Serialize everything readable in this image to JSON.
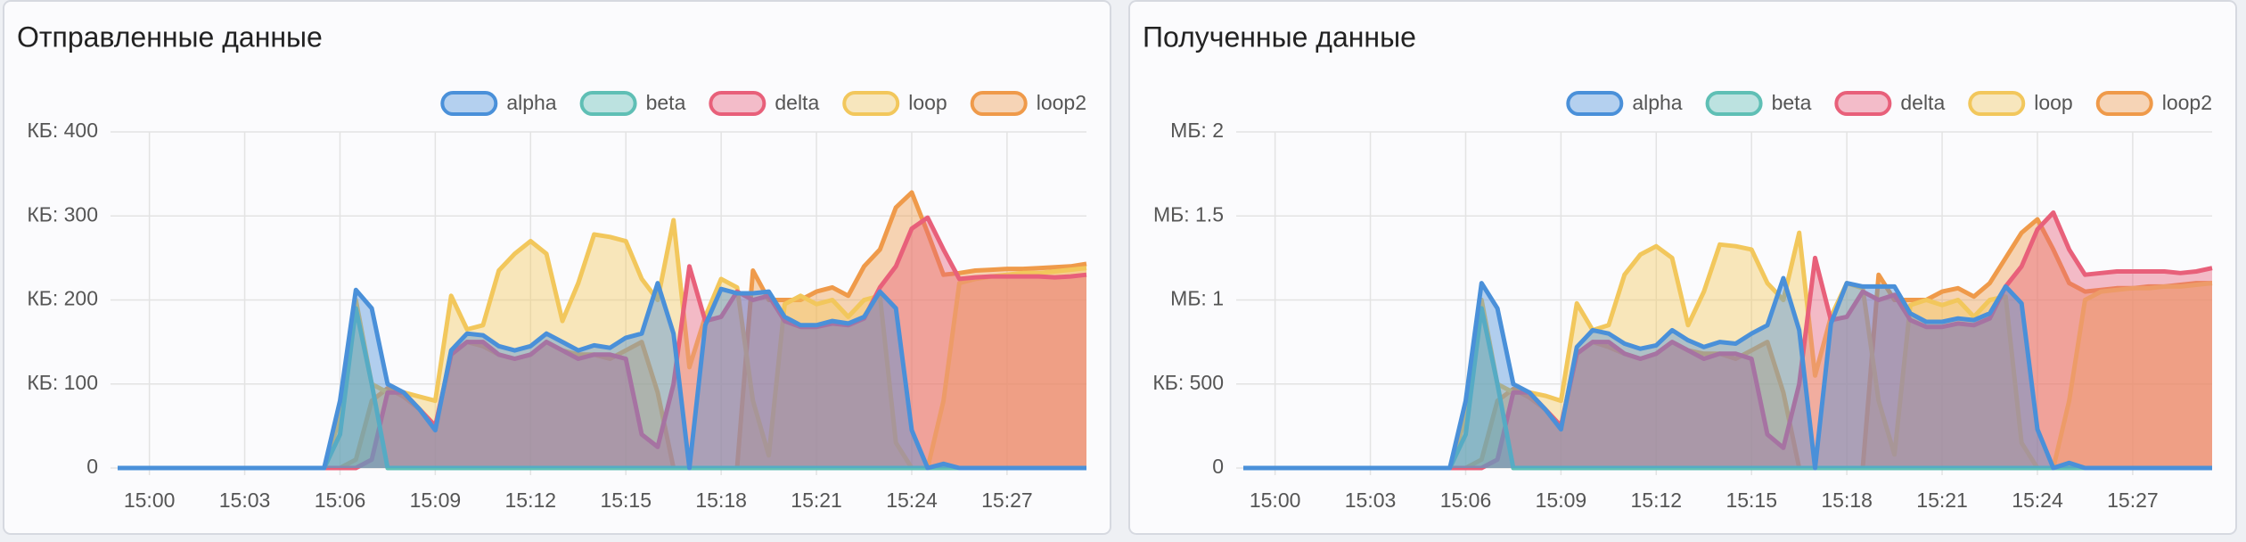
{
  "chart_data": [
    {
      "type": "area",
      "title": "Отправленные данные",
      "x": [
        -1,
        -0.5,
        0,
        0.5,
        1,
        1.5,
        2,
        2.5,
        3,
        3.5,
        4,
        4.5,
        5,
        5.5,
        6,
        6.5,
        7,
        7.5,
        8,
        8.5,
        9,
        9.5,
        10,
        10.5,
        11,
        11.5,
        12,
        12.5,
        13,
        13.5,
        14,
        14.5,
        15,
        15.5,
        16,
        16.5,
        17,
        17.5,
        18,
        18.5,
        19,
        19.5,
        20,
        20.5,
        21,
        21.5,
        22,
        22.5,
        23,
        23.5,
        24,
        24.5,
        25,
        25.5,
        26,
        26.5,
        27,
        27.5,
        28,
        28.5,
        29,
        29.5
      ],
      "series": [
        {
          "name": "alpha",
          "color": "#4a90d9",
          "values": [
            0,
            0,
            0,
            0,
            0,
            0,
            0,
            0,
            0,
            0,
            0,
            0,
            0,
            0,
            80,
            212,
            190,
            100,
            90,
            70,
            45,
            140,
            160,
            158,
            145,
            140,
            145,
            160,
            150,
            140,
            146,
            143,
            155,
            160,
            220,
            160,
            0,
            170,
            213,
            208,
            208,
            210,
            180,
            170,
            170,
            175,
            172,
            180,
            210,
            190,
            45,
            0,
            5,
            0,
            0,
            0,
            0,
            0,
            0,
            0,
            0,
            0
          ]
        },
        {
          "name": "beta",
          "color": "#5fbfb5",
          "values": [
            0,
            0,
            0,
            0,
            0,
            0,
            0,
            0,
            0,
            0,
            0,
            0,
            0,
            0,
            40,
            190,
            100,
            0,
            0,
            0,
            0,
            0,
            0,
            0,
            0,
            0,
            0,
            0,
            0,
            0,
            0,
            0,
            0,
            0,
            0,
            0,
            0,
            0,
            0,
            0,
            0,
            0,
            0,
            0,
            0,
            0,
            0,
            0,
            0,
            0,
            0,
            0,
            0,
            0,
            0,
            0,
            0,
            0,
            0,
            0,
            0,
            0
          ]
        },
        {
          "name": "delta",
          "color": "#e8607a",
          "values": [
            0,
            0,
            0,
            0,
            0,
            0,
            0,
            0,
            0,
            0,
            0,
            0,
            0,
            0,
            0,
            0,
            10,
            90,
            90,
            70,
            50,
            135,
            150,
            150,
            135,
            130,
            135,
            150,
            140,
            130,
            135,
            135,
            130,
            40,
            25,
            100,
            240,
            175,
            180,
            210,
            200,
            205,
            175,
            168,
            168,
            172,
            170,
            178,
            215,
            240,
            285,
            298,
            260,
            225,
            227,
            228,
            228,
            228,
            228,
            227,
            228,
            230
          ]
        },
        {
          "name": "loop",
          "color": "#f2c75c",
          "values": [
            0,
            0,
            0,
            0,
            0,
            0,
            0,
            0,
            0,
            0,
            0,
            0,
            0,
            0,
            60,
            200,
            100,
            90,
            90,
            85,
            80,
            205,
            165,
            170,
            235,
            255,
            270,
            255,
            175,
            220,
            278,
            275,
            270,
            225,
            200,
            295,
            120,
            180,
            225,
            215,
            80,
            15,
            195,
            205,
            195,
            200,
            180,
            200,
            205,
            30,
            0,
            0,
            80,
            220,
            225,
            228,
            230,
            232,
            232,
            234,
            236,
            238
          ]
        },
        {
          "name": "loop2",
          "color": "#ef9a4a",
          "values": [
            0,
            0,
            0,
            0,
            0,
            0,
            0,
            0,
            0,
            0,
            0,
            0,
            0,
            0,
            0,
            10,
            80,
            95,
            85,
            70,
            50,
            135,
            150,
            145,
            135,
            130,
            135,
            150,
            140,
            135,
            135,
            130,
            140,
            150,
            90,
            0,
            0,
            0,
            0,
            0,
            235,
            200,
            200,
            200,
            210,
            215,
            205,
            240,
            260,
            310,
            328,
            280,
            230,
            232,
            235,
            236,
            237,
            237,
            238,
            239,
            240,
            243
          ]
        }
      ],
      "xlim": [
        -1,
        29.5
      ],
      "xticks": [
        {
          "value": 0,
          "label": "15:00"
        },
        {
          "value": 3,
          "label": "15:03"
        },
        {
          "value": 6,
          "label": "15:06"
        },
        {
          "value": 9,
          "label": "15:09"
        },
        {
          "value": 12,
          "label": "15:12"
        },
        {
          "value": 15,
          "label": "15:15"
        },
        {
          "value": 18,
          "label": "15:18"
        },
        {
          "value": 21,
          "label": "15:21"
        },
        {
          "value": 24,
          "label": "15:24"
        },
        {
          "value": 27,
          "label": "15:27"
        }
      ],
      "ylim": [
        0,
        400
      ],
      "yticks": [
        0,
        {
          "value": 100,
          "label": "КБ: 100"
        },
        {
          "value": 200,
          "label": "КБ: 200"
        },
        {
          "value": 300,
          "label": "КБ: 300"
        },
        {
          "value": 400,
          "label": "КБ: 400"
        }
      ],
      "grid": true,
      "legend": "top-right"
    },
    {
      "type": "area",
      "title": "Полученные данные",
      "x": [
        -1,
        -0.5,
        0,
        0.5,
        1,
        1.5,
        2,
        2.5,
        3,
        3.5,
        4,
        4.5,
        5,
        5.5,
        6,
        6.5,
        7,
        7.5,
        8,
        8.5,
        9,
        9.5,
        10,
        10.5,
        11,
        11.5,
        12,
        12.5,
        13,
        13.5,
        14,
        14.5,
        15,
        15.5,
        16,
        16.5,
        17,
        17.5,
        18,
        18.5,
        19,
        19.5,
        20,
        20.5,
        21,
        21.5,
        22,
        22.5,
        23,
        23.5,
        24,
        24.5,
        25,
        25.5,
        26,
        26.5,
        27,
        27.5,
        28,
        28.5,
        29,
        29.5
      ],
      "series": [
        {
          "name": "alpha",
          "color": "#4a90d9",
          "values": [
            0,
            0,
            0,
            0,
            0,
            0,
            0,
            0,
            0,
            0,
            0,
            0,
            0,
            0,
            0.4,
            1.1,
            0.95,
            0.5,
            0.45,
            0.35,
            0.23,
            0.72,
            0.82,
            0.8,
            0.74,
            0.71,
            0.73,
            0.82,
            0.76,
            0.72,
            0.75,
            0.74,
            0.8,
            0.85,
            1.13,
            0.82,
            0,
            0.86,
            1.1,
            1.08,
            1.08,
            1.08,
            0.92,
            0.87,
            0.87,
            0.89,
            0.88,
            0.92,
            1.08,
            0.98,
            0.23,
            0,
            0.03,
            0,
            0,
            0,
            0,
            0,
            0,
            0,
            0,
            0
          ]
        },
        {
          "name": "beta",
          "color": "#5fbfb5",
          "values": [
            0,
            0,
            0,
            0,
            0,
            0,
            0,
            0,
            0,
            0,
            0,
            0,
            0,
            0,
            0.2,
            0.95,
            0.5,
            0,
            0,
            0,
            0,
            0,
            0,
            0,
            0,
            0,
            0,
            0,
            0,
            0,
            0,
            0,
            0,
            0,
            0,
            0,
            0,
            0,
            0,
            0,
            0,
            0,
            0,
            0,
            0,
            0,
            0,
            0,
            0,
            0,
            0,
            0,
            0,
            0,
            0,
            0,
            0,
            0,
            0,
            0,
            0,
            0
          ]
        },
        {
          "name": "delta",
          "color": "#e8607a",
          "values": [
            0,
            0,
            0,
            0,
            0,
            0,
            0,
            0,
            0,
            0,
            0,
            0,
            0,
            0,
            0,
            0,
            0.05,
            0.45,
            0.45,
            0.35,
            0.25,
            0.68,
            0.75,
            0.75,
            0.68,
            0.65,
            0.68,
            0.75,
            0.7,
            0.65,
            0.68,
            0.68,
            0.65,
            0.2,
            0.12,
            0.5,
            1.25,
            0.88,
            0.9,
            1.05,
            1.0,
            1.03,
            0.88,
            0.84,
            0.84,
            0.86,
            0.85,
            0.89,
            1.08,
            1.2,
            1.42,
            1.52,
            1.3,
            1.15,
            1.16,
            1.17,
            1.17,
            1.17,
            1.17,
            1.16,
            1.17,
            1.19
          ]
        },
        {
          "name": "loop",
          "color": "#f2c75c",
          "values": [
            0,
            0,
            0,
            0,
            0,
            0,
            0,
            0,
            0,
            0,
            0,
            0,
            0,
            0,
            0.3,
            1.0,
            0.5,
            0.45,
            0.45,
            0.43,
            0.4,
            0.98,
            0.82,
            0.85,
            1.15,
            1.27,
            1.32,
            1.25,
            0.85,
            1.05,
            1.33,
            1.32,
            1.3,
            1.1,
            1.0,
            1.4,
            0.55,
            0.9,
            1.1,
            1.07,
            0.4,
            0.08,
            0.97,
            1.0,
            0.97,
            1.0,
            0.9,
            1.0,
            1.02,
            0.15,
            0,
            0,
            0.4,
            1.0,
            1.05,
            1.06,
            1.07,
            1.07,
            1.08,
            1.08,
            1.09,
            1.1
          ]
        },
        {
          "name": "loop2",
          "color": "#ef9a4a",
          "values": [
            0,
            0,
            0,
            0,
            0,
            0,
            0,
            0,
            0,
            0,
            0,
            0,
            0,
            0,
            0,
            0.05,
            0.4,
            0.47,
            0.42,
            0.35,
            0.25,
            0.68,
            0.75,
            0.72,
            0.68,
            0.65,
            0.68,
            0.75,
            0.7,
            0.68,
            0.68,
            0.65,
            0.7,
            0.75,
            0.45,
            0,
            0,
            0,
            0,
            0,
            1.15,
            1.0,
            1.0,
            1.0,
            1.05,
            1.07,
            1.02,
            1.1,
            1.25,
            1.4,
            1.48,
            1.3,
            1.1,
            1.05,
            1.06,
            1.07,
            1.07,
            1.08,
            1.08,
            1.09,
            1.1,
            1.1
          ]
        }
      ],
      "xlim": [
        -1,
        29.5
      ],
      "xticks": [
        {
          "value": 0,
          "label": "15:00"
        },
        {
          "value": 3,
          "label": "15:03"
        },
        {
          "value": 6,
          "label": "15:06"
        },
        {
          "value": 9,
          "label": "15:09"
        },
        {
          "value": 12,
          "label": "15:12"
        },
        {
          "value": 15,
          "label": "15:15"
        },
        {
          "value": 18,
          "label": "15:18"
        },
        {
          "value": 21,
          "label": "15:21"
        },
        {
          "value": 24,
          "label": "15:24"
        },
        {
          "value": 27,
          "label": "15:27"
        }
      ],
      "ylim": [
        0,
        2
      ],
      "yticks": [
        0,
        {
          "value": 0.5,
          "label": "КБ: 500"
        },
        {
          "value": 1,
          "label": "МБ: 1"
        },
        {
          "value": 1.5,
          "label": "МБ: 1.5"
        },
        {
          "value": 2,
          "label": "МБ: 2"
        }
      ],
      "grid": true,
      "legend": "top-right"
    }
  ]
}
